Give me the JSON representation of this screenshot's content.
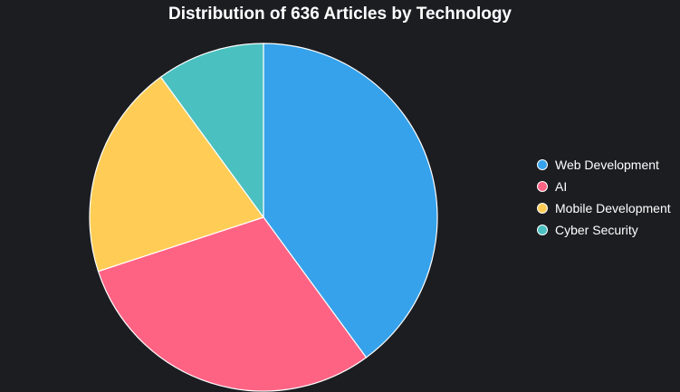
{
  "chart_data": {
    "type": "pie",
    "title": "Distribution of 636 Articles by Technology",
    "categories": [
      "Web Development",
      "AI",
      "Mobile Development",
      "Cyber Security"
    ],
    "values": [
      254,
      191,
      127,
      64
    ],
    "colors": [
      "#36a2eb",
      "#ff6384",
      "#ffcd56",
      "#4bc0c0"
    ],
    "legend_position": "right",
    "slice_border_color": "#ffffff",
    "background_color": "#1c1d21"
  }
}
